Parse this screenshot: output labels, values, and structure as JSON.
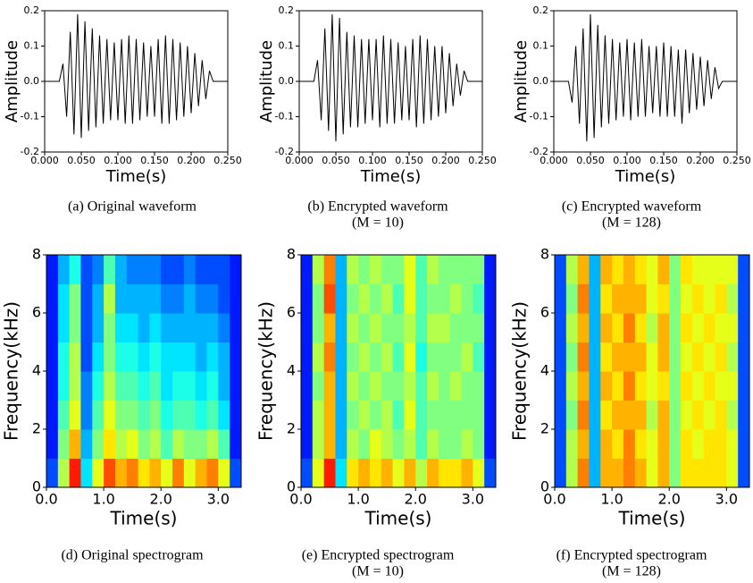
{
  "chart_data": [
    {
      "type": "line",
      "ylabel": "Amplitude",
      "xlabel": "Time(s)",
      "caption": [
        "(a) Original waveform"
      ],
      "color": "#000000",
      "grid": false,
      "xlim": [
        0,
        0.25
      ],
      "ylim": [
        -0.2,
        0.2
      ],
      "xticks": [
        {
          "value": 0,
          "label": "0.000"
        },
        {
          "value": 0.05,
          "label": "0.050"
        },
        {
          "value": 0.1,
          "label": "0.100"
        },
        {
          "value": 0.15,
          "label": "0.150"
        },
        {
          "value": 0.2,
          "label": "0.200"
        },
        {
          "value": 0.25,
          "label": "0.250"
        }
      ],
      "yticks": [
        -0.2,
        -0.1,
        {
          "value": 0,
          "label": "0.0"
        },
        0.1,
        0.2
      ],
      "x": [
        0,
        0.005,
        0.01,
        0.015,
        0.02,
        0.025,
        0.03,
        0.035,
        0.04,
        0.045,
        0.05,
        0.055,
        0.06,
        0.065,
        0.07,
        0.075,
        0.08,
        0.085,
        0.09,
        0.095,
        0.1,
        0.105,
        0.11,
        0.115,
        0.12,
        0.125,
        0.13,
        0.135,
        0.14,
        0.145,
        0.15,
        0.155,
        0.16,
        0.165,
        0.17,
        0.175,
        0.18,
        0.185,
        0.19,
        0.195,
        0.2,
        0.205,
        0.21,
        0.215,
        0.22,
        0.225,
        0.23,
        0.235,
        0.24,
        0.245,
        0.25
      ],
      "values": [
        0,
        0,
        0,
        0,
        0,
        0.05,
        -0.1,
        0.14,
        -0.15,
        0.19,
        -0.16,
        0.17,
        -0.14,
        0.15,
        -0.13,
        0.13,
        -0.12,
        0.12,
        -0.11,
        0.11,
        -0.11,
        0.12,
        -0.12,
        0.13,
        -0.12,
        0.12,
        -0.11,
        0.11,
        -0.1,
        0.1,
        -0.1,
        0.12,
        -0.12,
        0.13,
        -0.12,
        0.12,
        -0.11,
        0.11,
        -0.1,
        0.1,
        -0.09,
        0.08,
        -0.07,
        0.06,
        -0.05,
        0.03,
        0,
        0,
        0,
        0,
        0
      ]
    },
    {
      "type": "line",
      "ylabel": "Amplitude",
      "xlabel": "Time(s)",
      "caption": [
        "(b) Encrypted waveform",
        "(M = 10)"
      ],
      "color": "#000000",
      "grid": false,
      "xlim": [
        0,
        0.25
      ],
      "ylim": [
        -0.2,
        0.2
      ],
      "xticks": [
        {
          "value": 0,
          "label": "0.000"
        },
        {
          "value": 0.05,
          "label": "0.050"
        },
        {
          "value": 0.1,
          "label": "0.100"
        },
        {
          "value": 0.15,
          "label": "0.150"
        },
        {
          "value": 0.2,
          "label": "0.200"
        },
        {
          "value": 0.25,
          "label": "0.250"
        }
      ],
      "yticks": [
        -0.2,
        -0.1,
        {
          "value": 0,
          "label": "0.0"
        },
        0.1,
        0.2
      ],
      "x": [
        0,
        0.005,
        0.01,
        0.015,
        0.02,
        0.025,
        0.03,
        0.035,
        0.04,
        0.045,
        0.05,
        0.055,
        0.06,
        0.065,
        0.07,
        0.075,
        0.08,
        0.085,
        0.09,
        0.095,
        0.1,
        0.105,
        0.11,
        0.115,
        0.12,
        0.125,
        0.13,
        0.135,
        0.14,
        0.145,
        0.15,
        0.155,
        0.16,
        0.165,
        0.17,
        0.175,
        0.18,
        0.185,
        0.19,
        0.195,
        0.2,
        0.205,
        0.21,
        0.215,
        0.22,
        0.225,
        0.23,
        0.235,
        0.24,
        0.245,
        0.25
      ],
      "values": [
        0,
        0,
        0,
        0,
        0,
        0.06,
        -0.11,
        0.15,
        -0.14,
        0.19,
        -0.17,
        0.18,
        -0.15,
        0.14,
        -0.13,
        0.13,
        -0.13,
        0.12,
        -0.12,
        0.12,
        -0.11,
        0.12,
        -0.13,
        0.13,
        -0.12,
        0.12,
        -0.12,
        0.11,
        -0.11,
        0.1,
        -0.11,
        0.12,
        -0.13,
        0.13,
        -0.12,
        0.12,
        -0.11,
        0.1,
        -0.1,
        0.1,
        -0.09,
        0.08,
        -0.07,
        0.05,
        -0.04,
        0.03,
        0,
        0,
        0,
        0,
        0
      ]
    },
    {
      "type": "line",
      "ylabel": "Amplitude",
      "xlabel": "Time(s)",
      "caption": [
        "(c) Encrypted waveform",
        "(M = 128)"
      ],
      "color": "#000000",
      "grid": false,
      "xlim": [
        0,
        0.25
      ],
      "ylim": [
        -0.2,
        0.2
      ],
      "xticks": [
        {
          "value": 0,
          "label": "0.000"
        },
        {
          "value": 0.05,
          "label": "0.050"
        },
        {
          "value": 0.1,
          "label": "0.100"
        },
        {
          "value": 0.15,
          "label": "0.150"
        },
        {
          "value": 0.2,
          "label": "0.200"
        },
        {
          "value": 0.25,
          "label": "0.250"
        }
      ],
      "yticks": [
        -0.2,
        -0.1,
        {
          "value": 0,
          "label": "0.0"
        },
        0.1,
        0.2
      ],
      "x": [
        0,
        0.005,
        0.01,
        0.015,
        0.02,
        0.025,
        0.03,
        0.035,
        0.04,
        0.045,
        0.05,
        0.055,
        0.06,
        0.065,
        0.07,
        0.075,
        0.08,
        0.085,
        0.09,
        0.095,
        0.1,
        0.105,
        0.11,
        0.115,
        0.12,
        0.125,
        0.13,
        0.135,
        0.14,
        0.145,
        0.15,
        0.155,
        0.16,
        0.165,
        0.17,
        0.175,
        0.18,
        0.185,
        0.19,
        0.195,
        0.2,
        0.205,
        0.21,
        0.215,
        0.22,
        0.225,
        0.23,
        0.235,
        0.24,
        0.245,
        0.25
      ],
      "values": [
        0,
        0,
        0,
        0,
        0,
        -0.06,
        0.1,
        -0.12,
        0.15,
        -0.17,
        0.19,
        -0.16,
        0.16,
        -0.13,
        0.13,
        -0.12,
        0.12,
        -0.11,
        0.11,
        -0.1,
        0.12,
        -0.11,
        0.11,
        -0.1,
        0.12,
        -0.1,
        0.1,
        -0.09,
        0.1,
        -0.1,
        0.11,
        -0.1,
        0.1,
        -0.1,
        0.09,
        -0.12,
        0.09,
        -0.09,
        0.08,
        -0.08,
        0.07,
        -0.07,
        0.06,
        -0.05,
        0.04,
        -0.02,
        0,
        0,
        0,
        0,
        0
      ]
    },
    {
      "type": "heatmap",
      "ylabel": "Frequency(kHz)",
      "xlabel": "Time(s)",
      "caption": [
        "(d) Original spectrogram"
      ],
      "colormap": "jet",
      "xlim": [
        0,
        3.4
      ],
      "ylim": [
        0,
        8
      ],
      "xticks": [
        {
          "value": 0,
          "label": "0.0"
        },
        {
          "value": 1,
          "label": "1.0"
        },
        {
          "value": 2,
          "label": "2.0"
        },
        {
          "value": 3,
          "label": "3.0"
        }
      ],
      "yticks": [
        0,
        2,
        4,
        6,
        8
      ],
      "z": [
        [
          0.2,
          0.55,
          0.85,
          0.35,
          0.6,
          0.8,
          0.7,
          0.75,
          0.65,
          0.7,
          0.6,
          0.75,
          0.6,
          0.7,
          0.75,
          0.6,
          0.2
        ],
        [
          0.15,
          0.5,
          0.7,
          0.3,
          0.5,
          0.65,
          0.55,
          0.6,
          0.5,
          0.55,
          0.45,
          0.55,
          0.5,
          0.5,
          0.55,
          0.45,
          0.15
        ],
        [
          0.15,
          0.45,
          0.6,
          0.25,
          0.45,
          0.6,
          0.5,
          0.5,
          0.45,
          0.5,
          0.4,
          0.45,
          0.45,
          0.4,
          0.45,
          0.35,
          0.15
        ],
        [
          0.15,
          0.4,
          0.55,
          0.25,
          0.4,
          0.55,
          0.45,
          0.45,
          0.4,
          0.45,
          0.35,
          0.4,
          0.4,
          0.35,
          0.4,
          0.3,
          0.15
        ],
        [
          0.15,
          0.4,
          0.55,
          0.2,
          0.35,
          0.5,
          0.4,
          0.4,
          0.35,
          0.4,
          0.35,
          0.35,
          0.35,
          0.3,
          0.35,
          0.3,
          0.15
        ],
        [
          0.15,
          0.35,
          0.5,
          0.2,
          0.3,
          0.5,
          0.35,
          0.35,
          0.3,
          0.35,
          0.3,
          0.3,
          0.3,
          0.3,
          0.3,
          0.25,
          0.15
        ],
        [
          0.15,
          0.35,
          0.5,
          0.2,
          0.3,
          0.55,
          0.3,
          0.3,
          0.3,
          0.3,
          0.25,
          0.25,
          0.3,
          0.25,
          0.25,
          0.2,
          0.15
        ],
        [
          0.15,
          0.3,
          0.4,
          0.2,
          0.25,
          0.45,
          0.3,
          0.25,
          0.25,
          0.25,
          0.2,
          0.2,
          0.25,
          0.2,
          0.2,
          0.2,
          0.15
        ]
      ]
    },
    {
      "type": "heatmap",
      "ylabel": "Frequency(kHz)",
      "xlabel": "Time(s)",
      "caption": [
        "(e) Encrypted spectrogram",
        "(M = 10)"
      ],
      "colormap": "jet",
      "xlim": [
        0,
        3.4
      ],
      "ylim": [
        0,
        8
      ],
      "xticks": [
        {
          "value": 0,
          "label": "0.0"
        },
        {
          "value": 1,
          "label": "1.0"
        },
        {
          "value": 2,
          "label": "2.0"
        },
        {
          "value": 3,
          "label": "3.0"
        }
      ],
      "yticks": [
        0,
        2,
        4,
        6,
        8
      ],
      "z": [
        [
          0.2,
          0.6,
          0.85,
          0.35,
          0.65,
          0.7,
          0.65,
          0.7,
          0.6,
          0.7,
          0.55,
          0.7,
          0.65,
          0.65,
          0.7,
          0.6,
          0.2
        ],
        [
          0.15,
          0.55,
          0.7,
          0.3,
          0.55,
          0.5,
          0.6,
          0.55,
          0.5,
          0.55,
          0.45,
          0.55,
          0.5,
          0.5,
          0.55,
          0.5,
          0.15
        ],
        [
          0.15,
          0.55,
          0.7,
          0.3,
          0.5,
          0.55,
          0.5,
          0.55,
          0.45,
          0.6,
          0.45,
          0.5,
          0.5,
          0.5,
          0.5,
          0.5,
          0.15
        ],
        [
          0.15,
          0.5,
          0.7,
          0.3,
          0.55,
          0.5,
          0.55,
          0.5,
          0.5,
          0.55,
          0.45,
          0.55,
          0.5,
          0.55,
          0.5,
          0.5,
          0.15
        ],
        [
          0.15,
          0.55,
          0.75,
          0.3,
          0.5,
          0.55,
          0.5,
          0.55,
          0.45,
          0.6,
          0.4,
          0.5,
          0.5,
          0.5,
          0.55,
          0.45,
          0.15
        ],
        [
          0.15,
          0.5,
          0.7,
          0.3,
          0.55,
          0.5,
          0.55,
          0.5,
          0.5,
          0.55,
          0.45,
          0.55,
          0.55,
          0.5,
          0.5,
          0.5,
          0.15
        ],
        [
          0.15,
          0.5,
          0.8,
          0.3,
          0.5,
          0.55,
          0.5,
          0.55,
          0.45,
          0.6,
          0.45,
          0.5,
          0.5,
          0.55,
          0.5,
          0.45,
          0.15
        ],
        [
          0.15,
          0.55,
          0.75,
          0.3,
          0.55,
          0.5,
          0.55,
          0.5,
          0.5,
          0.6,
          0.45,
          0.55,
          0.5,
          0.5,
          0.5,
          0.5,
          0.15
        ]
      ]
    },
    {
      "type": "heatmap",
      "ylabel": "Frequency(kHz)",
      "xlabel": "Time(s)",
      "caption": [
        "(f) Encrypted spectrogram",
        "(M = 128)"
      ],
      "colormap": "jet",
      "xlim": [
        0,
        3.4
      ],
      "ylim": [
        0,
        8
      ],
      "xticks": [
        {
          "value": 0,
          "label": "0.0"
        },
        {
          "value": 1,
          "label": "1.0"
        },
        {
          "value": 2,
          "label": "2.0"
        },
        {
          "value": 3,
          "label": "3.0"
        }
      ],
      "yticks": [
        0,
        2,
        4,
        6,
        8
      ],
      "z": [
        [
          0.2,
          0.55,
          0.75,
          0.3,
          0.7,
          0.7,
          0.75,
          0.7,
          0.6,
          0.7,
          0.5,
          0.65,
          0.65,
          0.65,
          0.65,
          0.6,
          0.2
        ],
        [
          0.2,
          0.55,
          0.7,
          0.3,
          0.7,
          0.65,
          0.75,
          0.65,
          0.6,
          0.7,
          0.5,
          0.65,
          0.6,
          0.65,
          0.65,
          0.6,
          0.2
        ],
        [
          0.2,
          0.5,
          0.75,
          0.3,
          0.65,
          0.7,
          0.7,
          0.7,
          0.55,
          0.7,
          0.5,
          0.6,
          0.65,
          0.6,
          0.65,
          0.55,
          0.2
        ],
        [
          0.2,
          0.55,
          0.7,
          0.3,
          0.7,
          0.65,
          0.75,
          0.65,
          0.6,
          0.65,
          0.5,
          0.65,
          0.6,
          0.65,
          0.6,
          0.6,
          0.2
        ],
        [
          0.2,
          0.5,
          0.75,
          0.3,
          0.65,
          0.7,
          0.7,
          0.7,
          0.6,
          0.7,
          0.5,
          0.6,
          0.65,
          0.6,
          0.65,
          0.55,
          0.2
        ],
        [
          0.2,
          0.55,
          0.7,
          0.3,
          0.7,
          0.65,
          0.75,
          0.65,
          0.55,
          0.7,
          0.5,
          0.65,
          0.6,
          0.65,
          0.6,
          0.6,
          0.2
        ],
        [
          0.2,
          0.5,
          0.75,
          0.3,
          0.65,
          0.7,
          0.7,
          0.7,
          0.6,
          0.65,
          0.5,
          0.6,
          0.65,
          0.6,
          0.65,
          0.55,
          0.2
        ],
        [
          0.2,
          0.55,
          0.7,
          0.3,
          0.7,
          0.65,
          0.7,
          0.65,
          0.6,
          0.7,
          0.5,
          0.65,
          0.6,
          0.6,
          0.6,
          0.6,
          0.2
        ]
      ]
    }
  ]
}
